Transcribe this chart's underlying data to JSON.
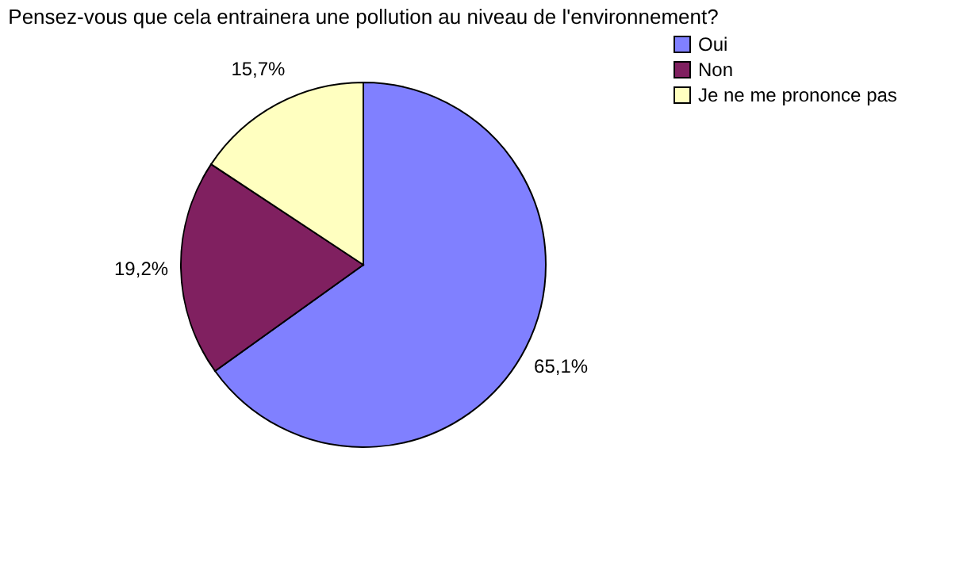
{
  "chart_data": {
    "type": "pie",
    "title": "Pensez-vous que cela entrainera une pollution au niveau de l'environnement?",
    "categories": [
      "Oui",
      "Non",
      "Je ne me prononce pas"
    ],
    "values": [
      65.1,
      19.2,
      15.7
    ],
    "value_labels": [
      "65,1%",
      "19,2%",
      "15,7%"
    ],
    "colors": [
      "#8080ff",
      "#802060",
      "#ffffc0"
    ],
    "legend": "top right"
  }
}
